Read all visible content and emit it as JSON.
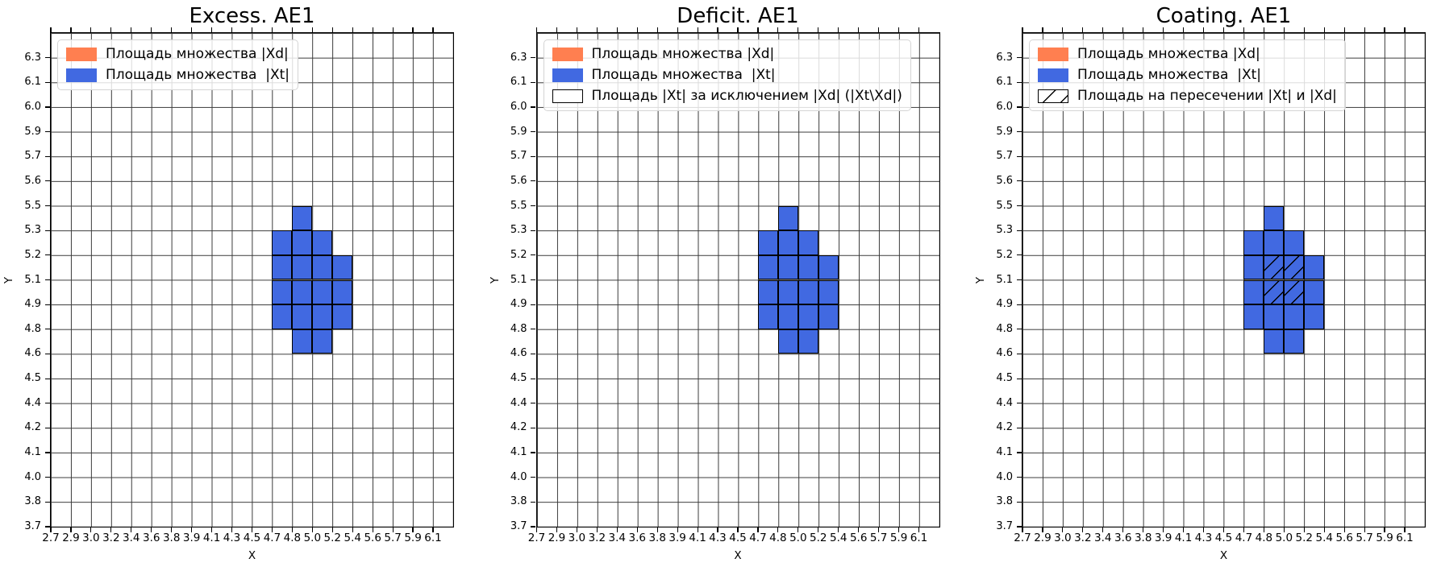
{
  "figure": {
    "background": "#ffffff"
  },
  "axes": {
    "x_label": "X",
    "y_label": "Y",
    "x_ticks": [
      "2.7",
      "2.9",
      "3.0",
      "3.2",
      "3.4",
      "3.6",
      "3.8",
      "3.9",
      "4.1",
      "4.3",
      "4.5",
      "4.7",
      "4.8",
      "5.0",
      "5.2",
      "5.4",
      "5.6",
      "5.7",
      "5.9",
      "6.1"
    ],
    "y_ticks": [
      "6.3",
      "6.1",
      "6.0",
      "5.9",
      "5.7",
      "5.6",
      "5.5",
      "5.3",
      "5.2",
      "5.1",
      "4.9",
      "4.8",
      "4.6",
      "4.5",
      "4.4",
      "4.2",
      "4.1",
      "4.0",
      "3.8",
      "3.7"
    ]
  },
  "colors": {
    "set_xd": "#FF7F50",
    "set_xt": "#4169E1",
    "grid": "#3b3b3b",
    "cell_edge": "#000000",
    "hatch": "#000000",
    "legend_border": "#d4d4d4"
  },
  "plots": [
    {
      "id": "excess",
      "title": "Excess. AE1",
      "legend": [
        {
          "swatch": "xd",
          "label": "Площадь множества |Xd|"
        },
        {
          "swatch": "xt",
          "label": "Площадь множества  |Xt|"
        }
      ]
    },
    {
      "id": "deficit",
      "title": "Deficit. AE1",
      "legend": [
        {
          "swatch": "xd",
          "label": "Площадь множества |Xd|"
        },
        {
          "swatch": "xt",
          "label": "Площадь множества  |Xt|"
        },
        {
          "swatch": "outline",
          "label": "Площадь |Xt| за исключением |Xd| (|Xt\\Xd|)"
        }
      ]
    },
    {
      "id": "coating",
      "title": "Coating. AE1",
      "legend": [
        {
          "swatch": "xd",
          "label": "Площадь множества |Xd|"
        },
        {
          "swatch": "xt",
          "label": "Площадь множества  |Xt|"
        },
        {
          "swatch": "hatch",
          "label": "Площадь на пересечении |Xt| и |Xd|"
        }
      ]
    }
  ],
  "chart_data": [
    {
      "type": "heatmap",
      "title": "Excess. AE1",
      "xlabel": "X",
      "ylabel": "Y",
      "x_ticks": [
        2.7,
        2.9,
        3.0,
        3.2,
        3.4,
        3.6,
        3.8,
        3.9,
        4.1,
        4.3,
        4.5,
        4.7,
        4.8,
        5.0,
        5.2,
        5.4,
        5.6,
        5.7,
        5.9,
        6.1
      ],
      "y_ticks": [
        6.3,
        6.1,
        6.0,
        5.9,
        5.7,
        5.6,
        5.5,
        5.3,
        5.2,
        5.1,
        4.9,
        4.8,
        4.6,
        4.5,
        4.4,
        4.2,
        4.1,
        4.0,
        3.8,
        3.7
      ],
      "grid": true,
      "legend_position": "upper left",
      "legend": [
        "Площадь множества |Xd|",
        "Площадь множества  |Xt|"
      ],
      "cell_encoding": "each filled cell is given as [x_tick_at_left_edge, y_tick_at_top_edge]; a cell spans one grid square to the next tick; ticks are uniformly spaced on screen; axes extend one empty grid square above 6.3 and right of 6.1",
      "filled_cells": [
        [
          4.8,
          5.5
        ],
        [
          4.7,
          5.3
        ],
        [
          4.8,
          5.3
        ],
        [
          5.0,
          5.3
        ],
        [
          4.7,
          5.2
        ],
        [
          4.8,
          5.2
        ],
        [
          5.0,
          5.2
        ],
        [
          5.2,
          5.2
        ],
        [
          4.7,
          5.1
        ],
        [
          4.8,
          5.1
        ],
        [
          5.0,
          5.1
        ],
        [
          5.2,
          5.1
        ],
        [
          4.7,
          4.9
        ],
        [
          4.8,
          4.9
        ],
        [
          5.0,
          4.9
        ],
        [
          5.2,
          4.9
        ],
        [
          4.8,
          4.8
        ],
        [
          5.0,
          4.8
        ]
      ],
      "filled_color": "#4169E1"
    },
    {
      "type": "heatmap",
      "title": "Deficit. AE1",
      "xlabel": "X",
      "ylabel": "Y",
      "x_ticks": [
        2.7,
        2.9,
        3.0,
        3.2,
        3.4,
        3.6,
        3.8,
        3.9,
        4.1,
        4.3,
        4.5,
        4.7,
        4.8,
        5.0,
        5.2,
        5.4,
        5.6,
        5.7,
        5.9,
        6.1
      ],
      "y_ticks": [
        6.3,
        6.1,
        6.0,
        5.9,
        5.7,
        5.6,
        5.5,
        5.3,
        5.2,
        5.1,
        4.9,
        4.8,
        4.6,
        4.5,
        4.4,
        4.2,
        4.1,
        4.0,
        3.8,
        3.7
      ],
      "grid": true,
      "legend_position": "upper left",
      "legend": [
        "Площадь множества |Xd|",
        "Площадь множества  |Xt|",
        "Площадь |Xt| за исключением |Xd| (|Xt\\Xd|)"
      ],
      "cell_encoding": "each filled cell is given as [x_tick_at_left_edge, y_tick_at_top_edge]",
      "filled_cells": [
        [
          4.8,
          5.5
        ],
        [
          4.7,
          5.3
        ],
        [
          4.8,
          5.3
        ],
        [
          5.0,
          5.3
        ],
        [
          4.7,
          5.2
        ],
        [
          4.8,
          5.2
        ],
        [
          5.0,
          5.2
        ],
        [
          5.2,
          5.2
        ],
        [
          4.7,
          5.1
        ],
        [
          4.8,
          5.1
        ],
        [
          5.0,
          5.1
        ],
        [
          5.2,
          5.1
        ],
        [
          4.7,
          4.9
        ],
        [
          4.8,
          4.9
        ],
        [
          5.0,
          4.9
        ],
        [
          5.2,
          4.9
        ],
        [
          4.8,
          4.8
        ],
        [
          5.0,
          4.8
        ]
      ],
      "filled_color": "#4169E1"
    },
    {
      "type": "heatmap",
      "title": "Coating. AE1",
      "xlabel": "X",
      "ylabel": "Y",
      "x_ticks": [
        2.7,
        2.9,
        3.0,
        3.2,
        3.4,
        3.6,
        3.8,
        3.9,
        4.1,
        4.3,
        4.5,
        4.7,
        4.8,
        5.0,
        5.2,
        5.4,
        5.6,
        5.7,
        5.9,
        6.1
      ],
      "y_ticks": [
        6.3,
        6.1,
        6.0,
        5.9,
        5.7,
        5.6,
        5.5,
        5.3,
        5.2,
        5.1,
        4.9,
        4.8,
        4.6,
        4.5,
        4.4,
        4.2,
        4.1,
        4.0,
        3.8,
        3.7
      ],
      "grid": true,
      "legend_position": "upper left",
      "legend": [
        "Площадь множества |Xd|",
        "Площадь множества  |Xt|",
        "Площадь на пересечении |Xt| и |Xd|"
      ],
      "cell_encoding": "each filled cell is given as [x_tick_at_left_edge, y_tick_at_top_edge]; hatched_cells carry a black '/' hatch over the blue fill",
      "filled_cells": [
        [
          4.8,
          5.5
        ],
        [
          4.7,
          5.3
        ],
        [
          4.8,
          5.3
        ],
        [
          5.0,
          5.3
        ],
        [
          4.7,
          5.2
        ],
        [
          4.8,
          5.2
        ],
        [
          5.0,
          5.2
        ],
        [
          5.2,
          5.2
        ],
        [
          4.7,
          5.1
        ],
        [
          4.8,
          5.1
        ],
        [
          5.0,
          5.1
        ],
        [
          5.2,
          5.1
        ],
        [
          4.7,
          4.9
        ],
        [
          4.8,
          4.9
        ],
        [
          5.0,
          4.9
        ],
        [
          5.2,
          4.9
        ],
        [
          4.8,
          4.8
        ],
        [
          5.0,
          4.8
        ]
      ],
      "hatched_cells": [
        [
          4.8,
          5.2
        ],
        [
          5.0,
          5.2
        ],
        [
          4.8,
          5.1
        ],
        [
          5.0,
          5.1
        ]
      ],
      "filled_color": "#4169E1"
    }
  ]
}
